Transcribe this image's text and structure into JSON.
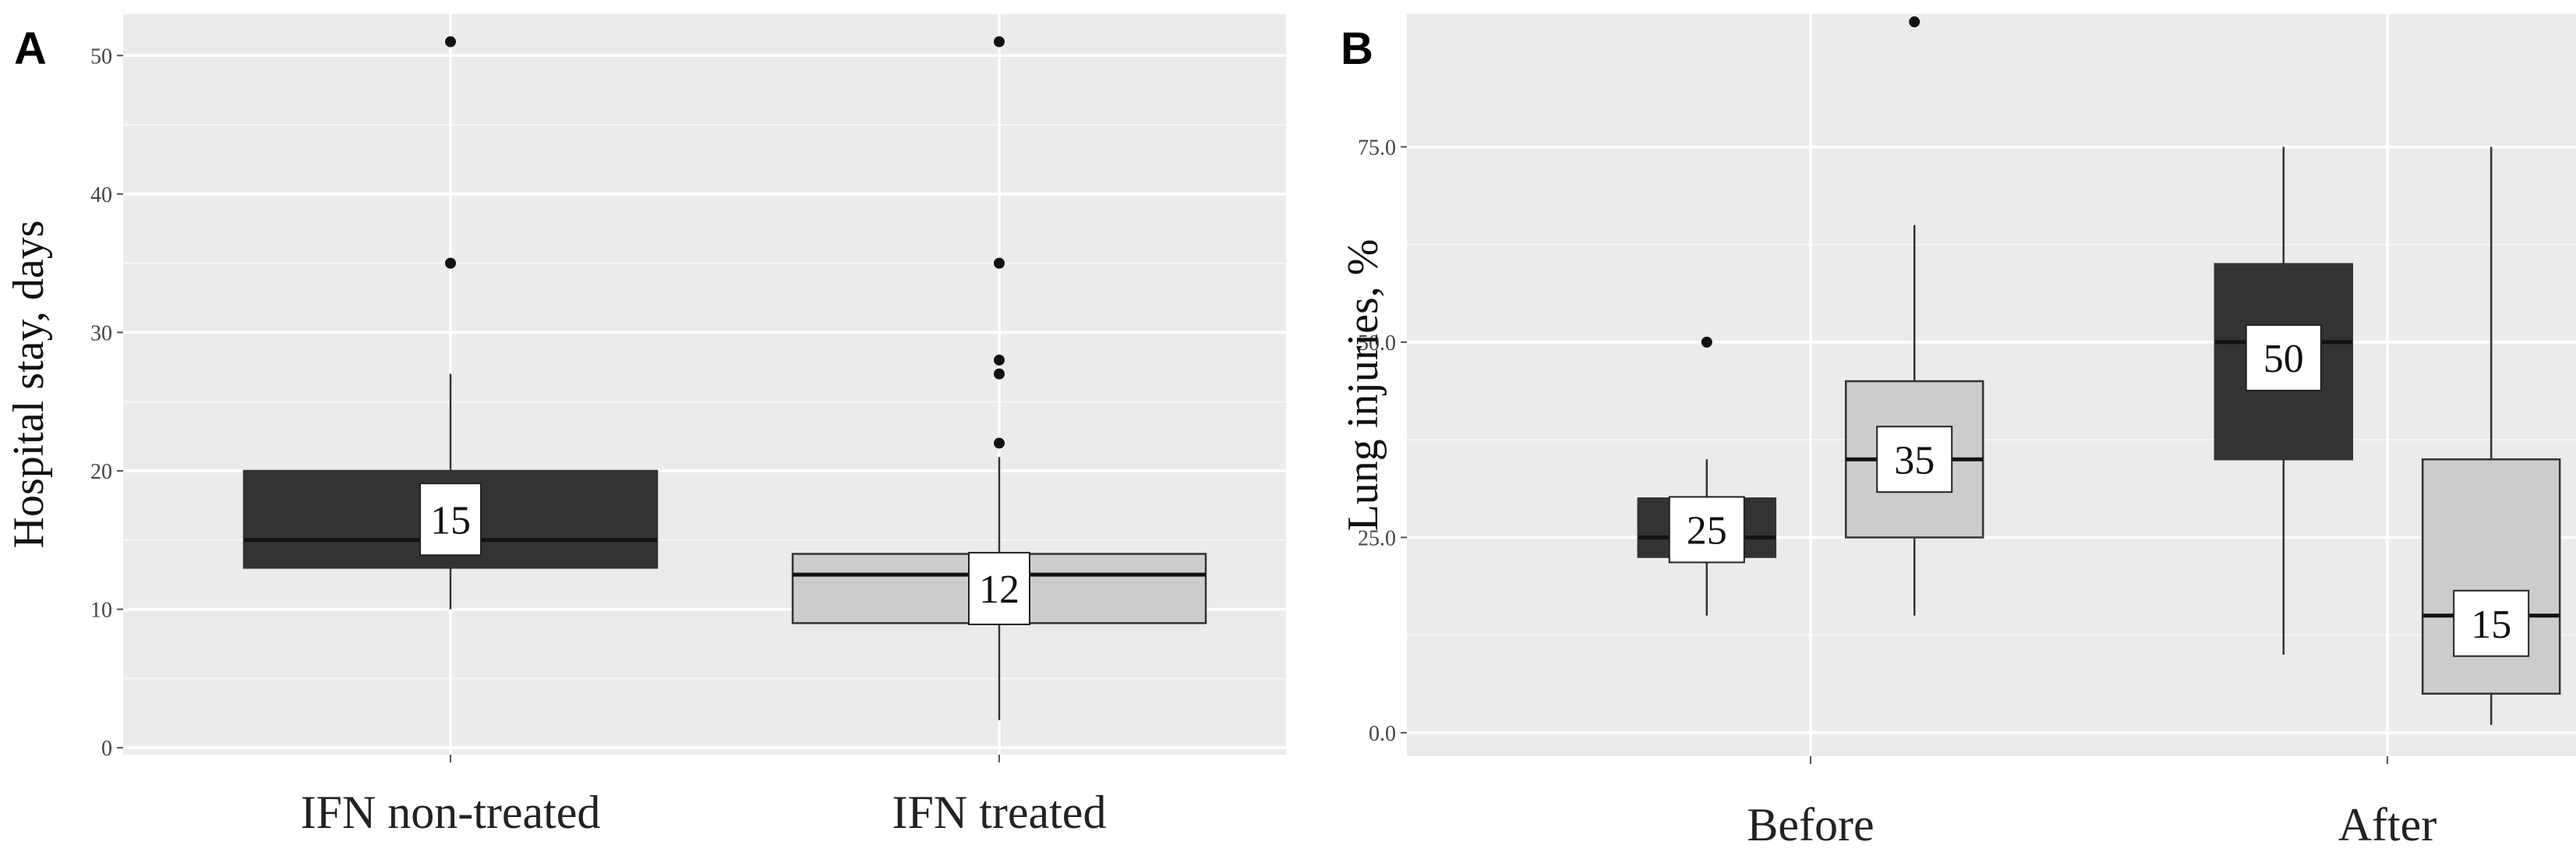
{
  "chart_data": [
    {
      "type": "box",
      "panel_label": "A",
      "ylabel": "Hospital stay, days",
      "xlabel": "",
      "ylim": [
        -0.5,
        53
      ],
      "yticks": [
        0,
        10,
        20,
        30,
        40,
        50
      ],
      "ytick_labels": [
        "0",
        "10",
        "20",
        "30",
        "40",
        "50"
      ],
      "grid": true,
      "categories": [
        "IFN non-treated",
        "IFN treated"
      ],
      "boxes": [
        {
          "category": "IFN non-treated",
          "fill": "#333333",
          "q1": 13,
          "median": 15,
          "q3": 20,
          "whisker_low": 10,
          "whisker_high": 27,
          "outliers": [
            35,
            51
          ],
          "label": "15",
          "label_y": 16.5
        },
        {
          "category": "IFN treated",
          "fill": "#cccccc",
          "q1": 9,
          "median": 12.5,
          "q3": 14,
          "whisker_low": 2,
          "whisker_high": 21,
          "outliers": [
            22,
            27,
            28,
            35,
            51
          ],
          "label": "12",
          "label_y": 11.5
        }
      ]
    },
    {
      "type": "box",
      "panel_label": "B",
      "ylabel": "Lung injuries, %",
      "xlabel": "",
      "ylim": [
        -3,
        92
      ],
      "yticks": [
        0,
        25,
        50,
        75
      ],
      "ytick_labels": [
        "0.0",
        "25.0",
        "50.0",
        "75.0"
      ],
      "grid": true,
      "categories": [
        "Before",
        "After"
      ],
      "boxes": [
        {
          "category": "Before",
          "offset": -0.18,
          "fill": "#333333",
          "q1": 22.5,
          "median": 25,
          "q3": 30,
          "whisker_low": 15,
          "whisker_high": 35,
          "outliers": [
            50
          ],
          "label": "25",
          "label_y": 26
        },
        {
          "category": "Before",
          "offset": 0.18,
          "fill": "#cccccc",
          "q1": 25,
          "median": 35,
          "q3": 45,
          "whisker_low": 15,
          "whisker_high": 65,
          "outliers": [
            91
          ],
          "label": "35",
          "label_y": 35
        },
        {
          "category": "After",
          "offset": -0.18,
          "fill": "#333333",
          "q1": 35,
          "median": 50,
          "q3": 60,
          "whisker_low": 10,
          "whisker_high": 75,
          "outliers": [],
          "label": "50",
          "label_y": 48
        },
        {
          "category": "After",
          "offset": 0.18,
          "fill": "#cccccc",
          "q1": 5,
          "median": 15,
          "q3": 35,
          "whisker_low": 1,
          "whisker_high": 75,
          "outliers": [],
          "label": "15",
          "label_y": 14
        }
      ]
    }
  ]
}
